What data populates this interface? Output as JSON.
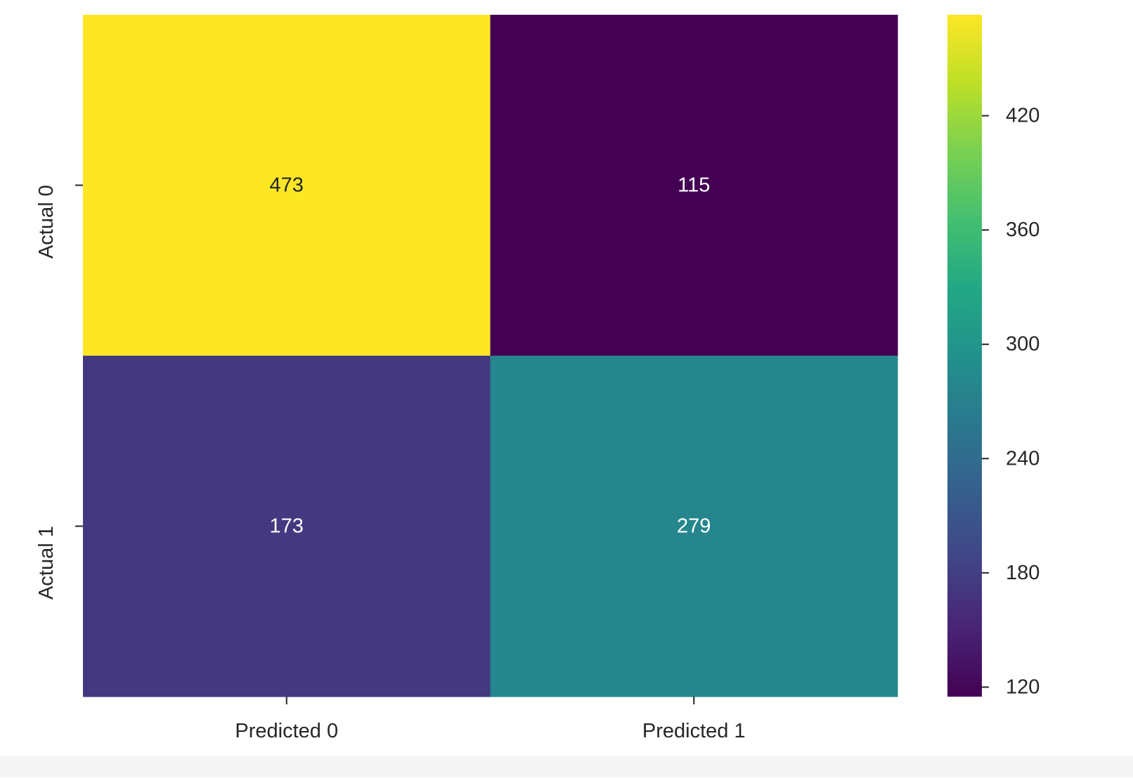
{
  "chart_data": {
    "type": "heatmap",
    "x_labels": [
      "Predicted 0",
      "Predicted 1"
    ],
    "y_labels": [
      "Actual 0",
      "Actual 1"
    ],
    "values": [
      [
        473,
        115
      ],
      [
        173,
        279
      ]
    ],
    "colormap": "viridis",
    "colorbar": {
      "min": 115,
      "max": 473,
      "ticks": [
        120,
        180,
        240,
        300,
        360,
        420
      ]
    },
    "annotation_colors": {
      "dark_text": "#262626",
      "light_text": "#ffffff"
    }
  }
}
